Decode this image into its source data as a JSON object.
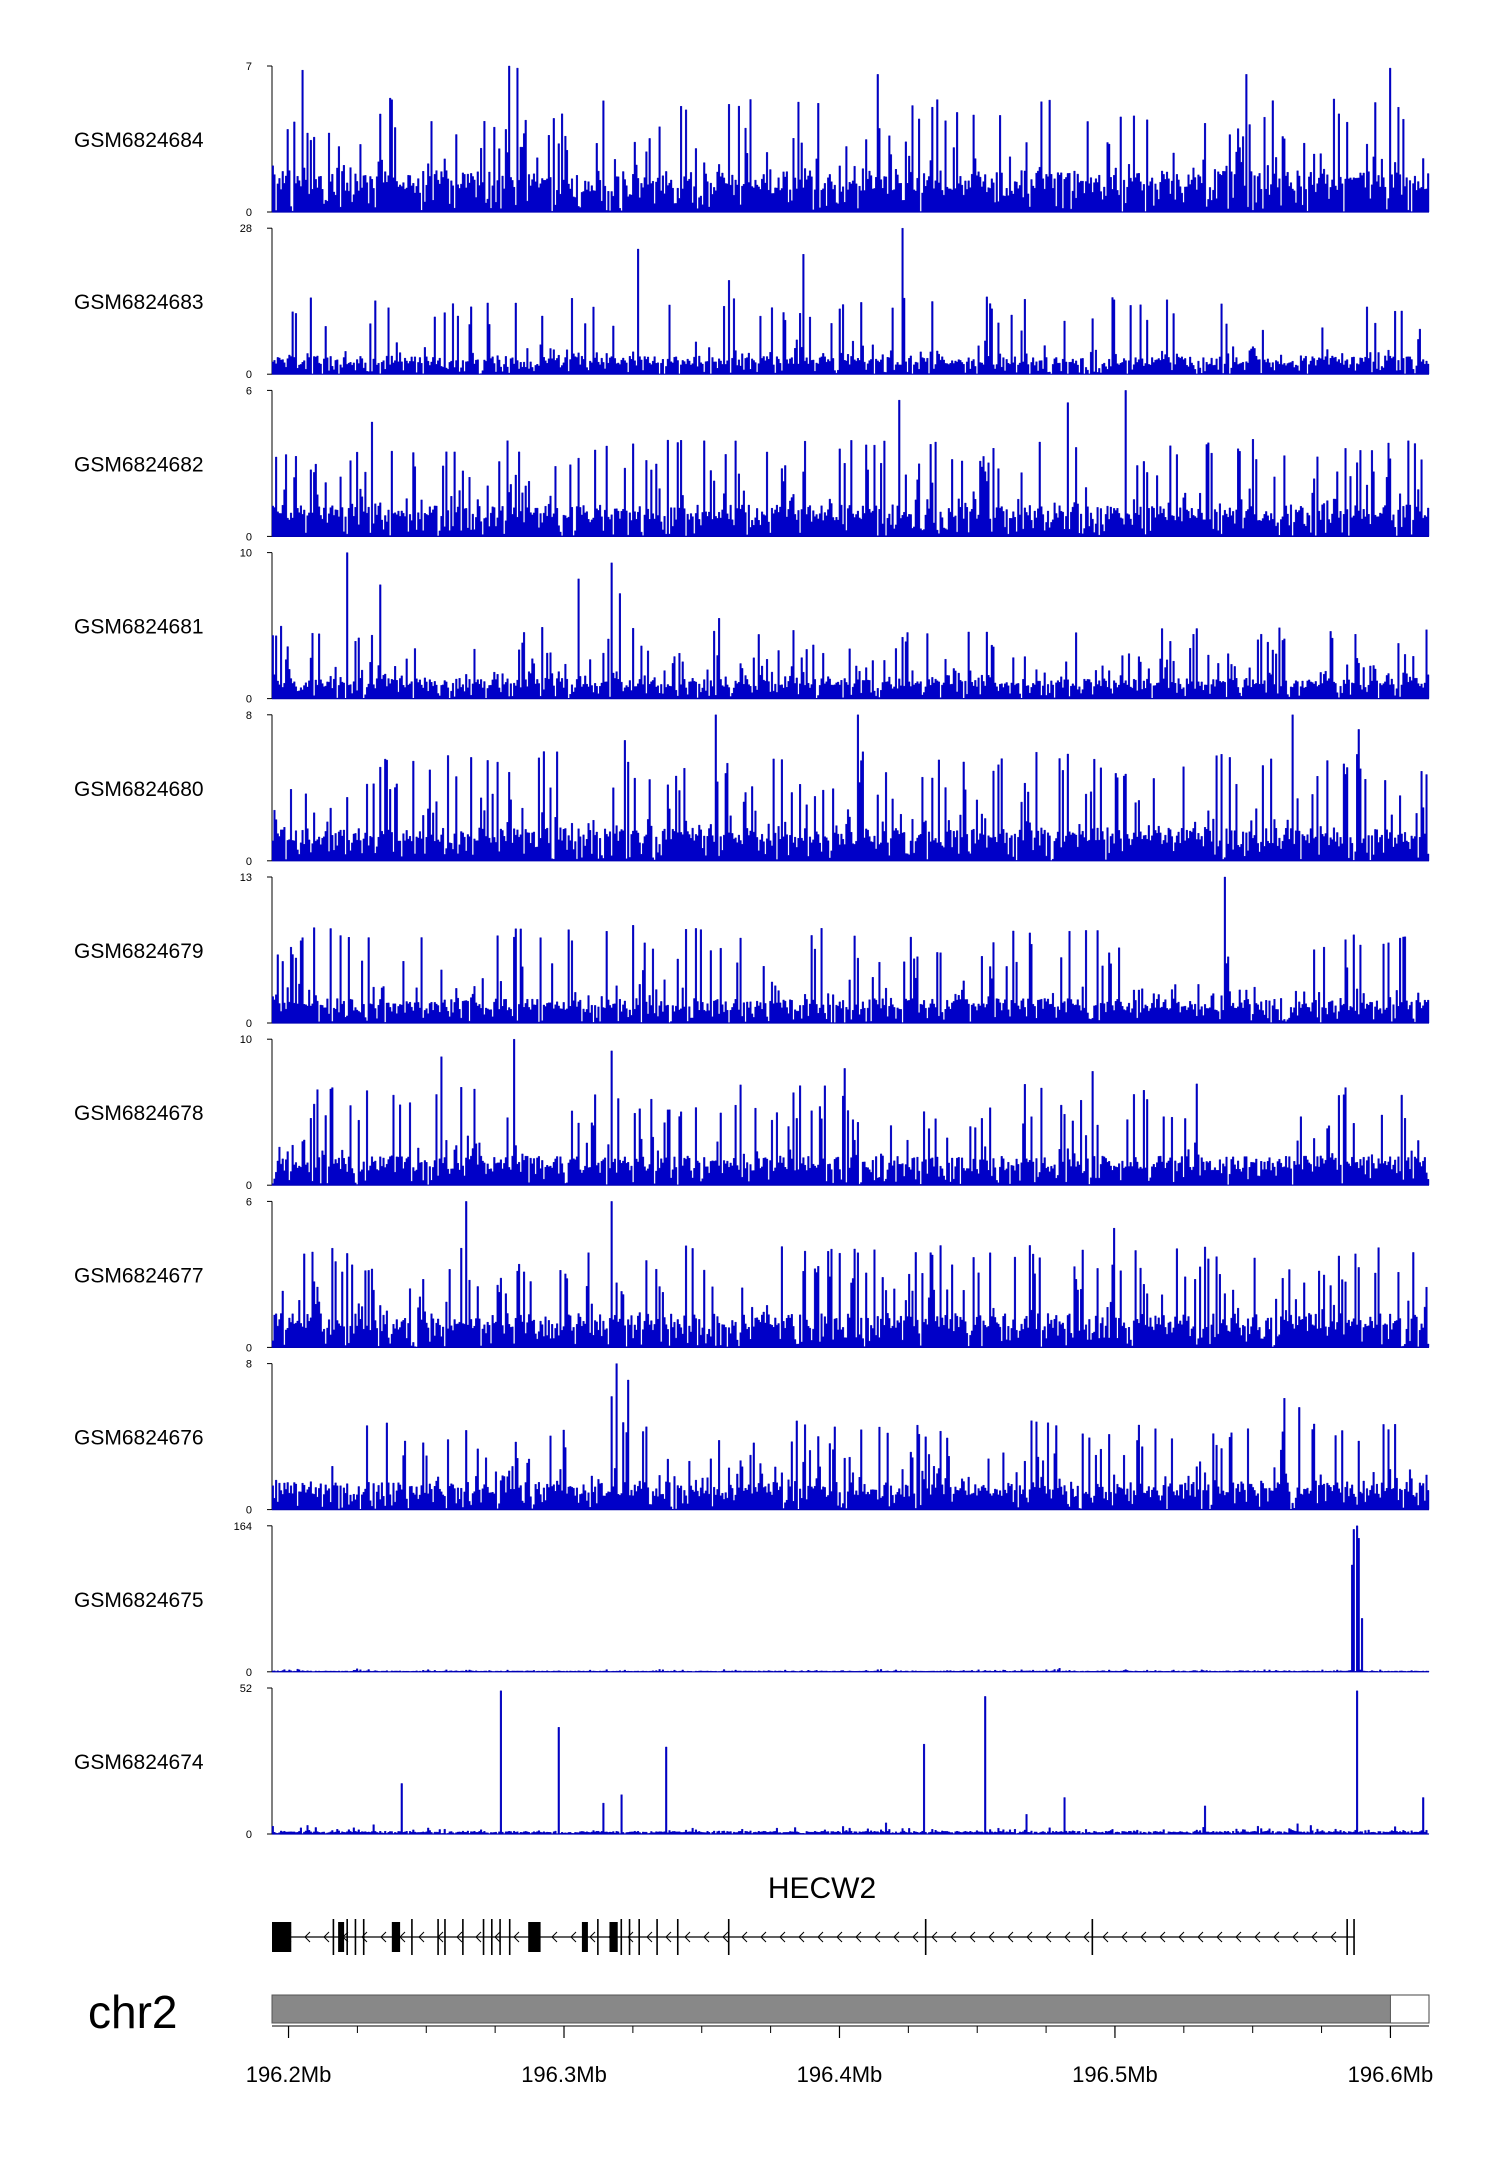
{
  "chart_data": {
    "type": "area",
    "genome_region": {
      "chromosome": "chr2",
      "xlim": [
        196.194,
        196.614
      ],
      "x_ticks": [
        196.2,
        196.3,
        196.4,
        196.5,
        196.6
      ],
      "x_tick_labels": [
        "196.2Mb",
        "196.3Mb",
        "196.4Mb",
        "196.5Mb",
        "196.6Mb"
      ],
      "chromosome_bar_end": 196.6
    },
    "tracks": [
      {
        "name": "GSM6824684",
        "ymax": 7,
        "ymin_label": "0",
        "ymax_label": "7",
        "noise_level": 2.0,
        "noise_max": 3.6,
        "spike_rate": 0.12,
        "spike_height": 5.5,
        "peaks": [
          [
            196.205,
            6.8
          ],
          [
            196.28,
            7
          ],
          [
            196.283,
            6.9
          ],
          [
            196.414,
            6.6
          ],
          [
            196.548,
            6.6
          ],
          [
            196.6,
            6.9
          ]
        ]
      },
      {
        "name": "GSM6824683",
        "ymax": 28,
        "ymin_label": "0",
        "ymax_label": "28",
        "noise_level": 3.5,
        "noise_max": 7,
        "spike_rate": 0.08,
        "spike_height": 15,
        "gapped": true,
        "peaks": [
          [
            196.327,
            24
          ],
          [
            196.387,
            23
          ],
          [
            196.423,
            28
          ],
          [
            196.36,
            18
          ],
          [
            196.5,
            11
          ]
        ]
      },
      {
        "name": "GSM6824682",
        "ymax": 6,
        "ymin_label": "0",
        "ymax_label": "6",
        "noise_level": 1.3,
        "noise_max": 2.4,
        "spike_rate": 0.13,
        "spike_height": 4.0,
        "peaks": [
          [
            196.422,
            5.6
          ],
          [
            196.504,
            6
          ],
          [
            196.483,
            5.5
          ],
          [
            196.23,
            4.7
          ]
        ]
      },
      {
        "name": "GSM6824681",
        "ymax": 10,
        "ymin_label": "0",
        "ymax_label": "10",
        "noise_level": 1.4,
        "noise_max": 3.5,
        "spike_rate": 0.1,
        "spike_height": 5.0,
        "peaks": [
          [
            196.221,
            10
          ],
          [
            196.233,
            7.8
          ],
          [
            196.305,
            8.2
          ],
          [
            196.317,
            9.3
          ],
          [
            196.32,
            7.2
          ],
          [
            196.356,
            5.5
          ],
          [
            196.53,
            4.8
          ]
        ]
      },
      {
        "name": "GSM6824680",
        "ymax": 8,
        "ymin_label": "0",
        "ymax_label": "8",
        "noise_level": 1.8,
        "noise_max": 3.6,
        "spike_rate": 0.13,
        "spike_height": 6.0,
        "peaks": [
          [
            196.355,
            8
          ],
          [
            196.407,
            8
          ],
          [
            196.565,
            8
          ],
          [
            196.589,
            7.2
          ],
          [
            196.322,
            6.6
          ]
        ]
      },
      {
        "name": "GSM6824679",
        "ymax": 13,
        "ymin_label": "0",
        "ymax_label": "13",
        "noise_level": 2.2,
        "noise_max": 4.2,
        "spike_rate": 0.12,
        "spike_height": 8.5,
        "peaks": [
          [
            196.54,
            13
          ],
          [
            196.325,
            8.7
          ],
          [
            196.205,
            7.6
          ],
          [
            196.39,
            7.8
          ]
        ]
      },
      {
        "name": "GSM6824678",
        "ymax": 10,
        "ymin_label": "0",
        "ymax_label": "10",
        "noise_level": 2.0,
        "noise_max": 3.8,
        "spike_rate": 0.13,
        "spike_height": 7.0,
        "peaks": [
          [
            196.282,
            10
          ],
          [
            196.317,
            9.2
          ],
          [
            196.255,
            8.8
          ],
          [
            196.402,
            8.0
          ],
          [
            196.492,
            7.8
          ]
        ]
      },
      {
        "name": "GSM6824677",
        "ymax": 6,
        "ymin_label": "0",
        "ymax_label": "6",
        "noise_level": 1.4,
        "noise_max": 2.6,
        "spike_rate": 0.13,
        "spike_height": 4.2,
        "peaks": [
          [
            196.264,
            6
          ],
          [
            196.317,
            6
          ],
          [
            196.5,
            4.9
          ],
          [
            196.596,
            4.1
          ]
        ]
      },
      {
        "name": "GSM6824676",
        "ymax": 8,
        "ymin_label": "0",
        "ymax_label": "8",
        "noise_level": 1.5,
        "noise_max": 3.3,
        "spike_rate": 0.11,
        "spike_height": 5.0,
        "peaks": [
          [
            196.319,
            8
          ],
          [
            196.317,
            6.2
          ],
          [
            196.323,
            7.1
          ],
          [
            196.562,
            6.1
          ],
          [
            196.567,
            5.6
          ]
        ]
      },
      {
        "name": "GSM6824675",
        "ymax": 164,
        "ymin_label": "0",
        "ymax_label": "164",
        "noise_level": 1.0,
        "noise_max": 3.0,
        "spike_rate": 0.01,
        "spike_height": 4.0,
        "peaks": [
          [
            196.587,
            160
          ],
          [
            196.588,
            164
          ],
          [
            196.589,
            150
          ],
          [
            196.5865,
            120
          ],
          [
            196.59,
            60
          ]
        ]
      },
      {
        "name": "GSM6824674",
        "ymax": 52,
        "ymin_label": "0",
        "ymax_label": "52",
        "noise_level": 1.0,
        "noise_max": 2.5,
        "spike_rate": 0.02,
        "spike_height": 4.0,
        "peaks": [
          [
            196.241,
            18
          ],
          [
            196.277,
            51
          ],
          [
            196.298,
            38
          ],
          [
            196.314,
            11
          ],
          [
            196.321,
            14
          ],
          [
            196.337,
            31
          ],
          [
            196.431,
            32
          ],
          [
            196.453,
            49
          ],
          [
            196.468,
            7
          ],
          [
            196.482,
            13
          ],
          [
            196.533,
            10
          ],
          [
            196.588,
            51
          ],
          [
            196.612,
            13
          ]
        ]
      }
    ],
    "gene": {
      "name": "HECW2",
      "strand": "-",
      "start": 196.194,
      "end": 196.587,
      "exons": [
        [
          196.194,
          196.201,
          "thick"
        ],
        [
          196.216,
          196.2165,
          "thin"
        ],
        [
          196.218,
          196.2195,
          "thick"
        ],
        [
          196.221,
          196.2215,
          "thin"
        ],
        [
          196.224,
          196.2245,
          "thin"
        ],
        [
          196.227,
          196.2275,
          "thin"
        ],
        [
          196.2375,
          196.2405,
          "thick"
        ],
        [
          196.2445,
          196.245,
          "thin"
        ],
        [
          196.254,
          196.2545,
          "thin"
        ],
        [
          196.2565,
          196.257,
          "thin"
        ],
        [
          196.263,
          196.2635,
          "thin"
        ],
        [
          196.2705,
          196.271,
          "thin"
        ],
        [
          196.2735,
          196.274,
          "thin"
        ],
        [
          196.2765,
          196.277,
          "thin"
        ],
        [
          196.28,
          196.2805,
          "thin"
        ],
        [
          196.287,
          196.2915,
          "thick"
        ],
        [
          196.3065,
          196.308,
          "thick"
        ],
        [
          196.312,
          196.3125,
          "thin"
        ],
        [
          196.3165,
          196.3195,
          "thick"
        ],
        [
          196.3205,
          196.321,
          "thin"
        ],
        [
          196.3235,
          196.324,
          "thin"
        ],
        [
          196.327,
          196.3275,
          "thin"
        ],
        [
          196.3335,
          196.334,
          "thin"
        ],
        [
          196.341,
          196.3415,
          "thin"
        ],
        [
          196.3595,
          196.36,
          "thin"
        ],
        [
          196.431,
          196.4315,
          "thin"
        ],
        [
          196.4915,
          196.492,
          "thin"
        ],
        [
          196.584,
          196.5845,
          "thin"
        ],
        [
          196.5865,
          196.587,
          "thin"
        ]
      ]
    }
  }
}
